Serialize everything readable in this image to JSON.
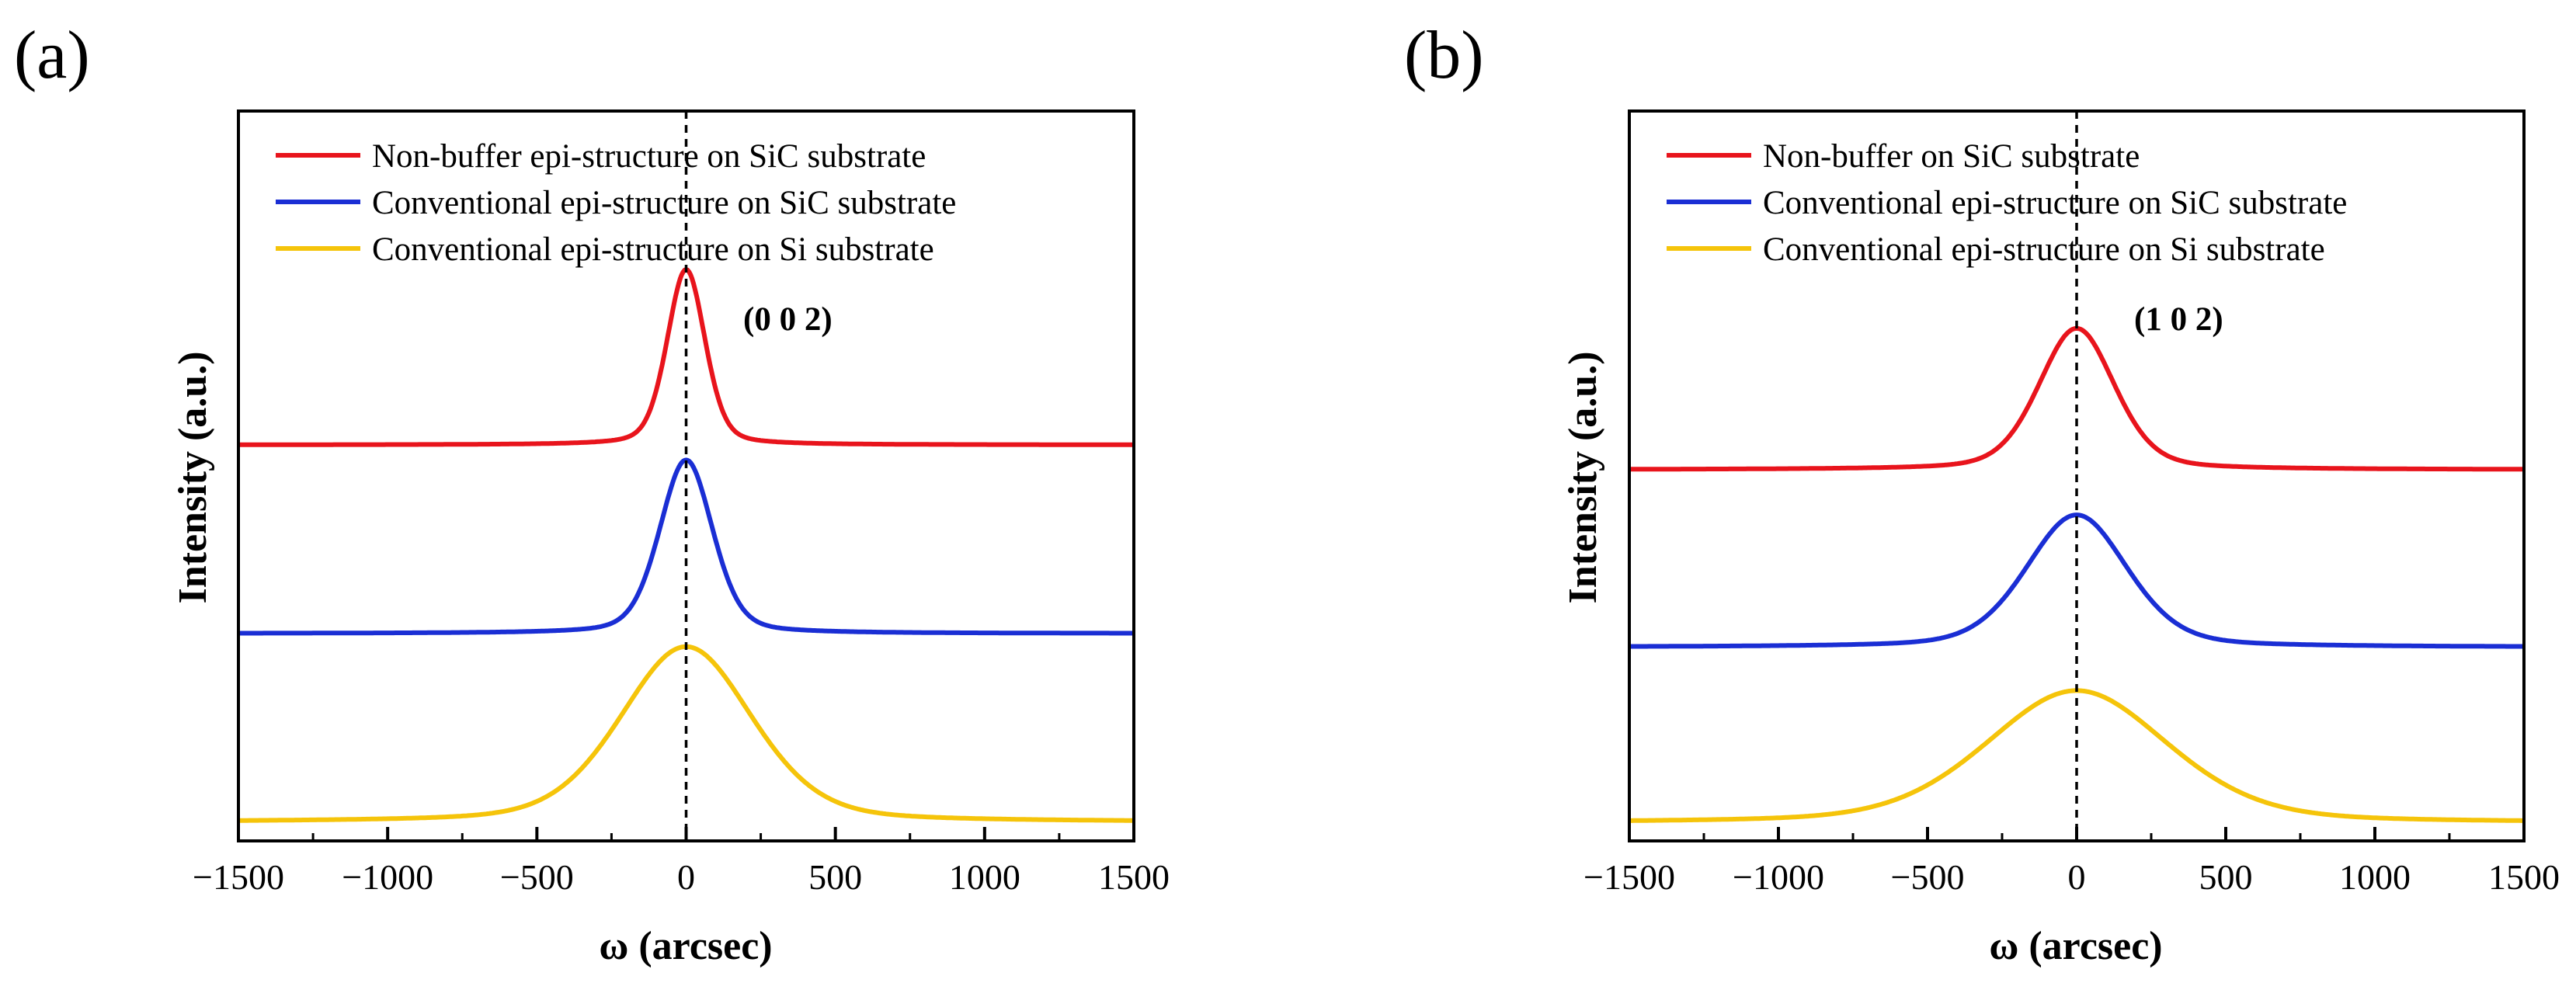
{
  "figure": {
    "panels": [
      {
        "label": "(a)",
        "annotation": "(0 0 2)"
      },
      {
        "label": "(b)",
        "annotation": "(1 0 2)"
      }
    ]
  },
  "chart_data": [
    {
      "type": "line",
      "xlabel": "ω (arcsec)",
      "ylabel": "Intensity (a.u.)",
      "xlim": [
        -1500,
        1500
      ],
      "xticks": [
        -1500,
        -1000,
        -500,
        0,
        500,
        1000,
        1500
      ],
      "xtick_labels": [
        "−1500",
        "−1000",
        "−500",
        "0",
        "500",
        "1000",
        "1500"
      ],
      "y_scale": "arbitrary units, curves vertically offset, no y tick labels",
      "reference_line": {
        "x": 0,
        "style": "dashed"
      },
      "legend_position": "top-left",
      "annotation": "(0 0 2)",
      "series": [
        {
          "name": "Non-buffer epi-structure on SiC substrate",
          "color": "#e8141c",
          "center": 0,
          "fwhm": 150,
          "baseline": 2.0,
          "peak_height": 0.93
        },
        {
          "name": "Conventional epi-structure on SiC substrate",
          "color": "#1a2ed4",
          "center": 0,
          "fwhm": 210,
          "baseline": 1.0,
          "peak_height": 0.92
        },
        {
          "name": "Conventional epi-structure on Si substrate",
          "color": "#f5c40a",
          "center": 0,
          "fwhm": 520,
          "baseline": 0.0,
          "peak_height": 0.93
        }
      ]
    },
    {
      "type": "line",
      "xlabel": "ω (arcsec)",
      "ylabel": "Intensity (a.u.)",
      "xlim": [
        -1500,
        1500
      ],
      "xticks": [
        -1500,
        -1000,
        -500,
        0,
        500,
        1000,
        1500
      ],
      "xtick_labels": [
        "−1500",
        "−1000",
        "−500",
        "0",
        "500",
        "1000",
        "1500"
      ],
      "y_scale": "arbitrary units, curves vertically offset, no y tick labels",
      "reference_line": {
        "x": 0,
        "style": "dashed"
      },
      "legend_position": "top-left",
      "annotation": "(1 0 2)",
      "series": [
        {
          "name": "Non-buffer on SiC substrate",
          "color": "#e8141c",
          "center": 0,
          "fwhm": 300,
          "baseline": 1.95,
          "peak_height": 0.78
        },
        {
          "name": "Conventional epi-structure on SiC substrate",
          "color": "#1a2ed4",
          "center": 0,
          "fwhm": 400,
          "baseline": 0.97,
          "peak_height": 0.73
        },
        {
          "name": "Conventional epi-structure on Si substrate",
          "color": "#f5c40a",
          "center": 0,
          "fwhm": 720,
          "baseline": 0.0,
          "peak_height": 0.73
        }
      ]
    }
  ]
}
